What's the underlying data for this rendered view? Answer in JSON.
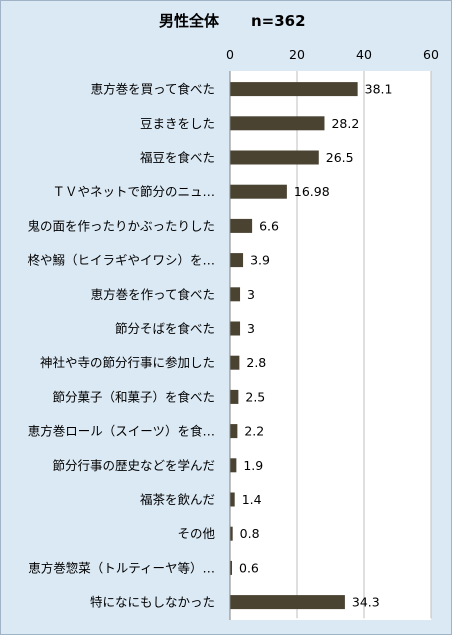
{
  "chart_data": {
    "type": "bar",
    "orientation": "horizontal",
    "title": "男性全体",
    "subtitle": "n=362",
    "xlim": [
      0,
      60
    ],
    "xticks": [
      0,
      20,
      40,
      60
    ],
    "grid": true,
    "legend": "none",
    "bar_color": "#4a4332",
    "categories": [
      "恵方巻を買って食べた",
      "豆まきをした",
      "福豆を食べた",
      "ＴＶやネットで節分のニュ…",
      "鬼の面を作ったりかぶったりした",
      "柊や鰯（ヒイラギやイワシ）を…",
      "恵方巻を作って食べた",
      "節分そばを食べた",
      "神社や寺の節分行事に参加した",
      "節分菓子（和菓子）を食べた",
      "恵方巻ロール（スイーツ）を食…",
      "節分行事の歴史などを学んだ",
      "福茶を飲んだ",
      "その他",
      "恵方巻惣菜（トルティーヤ等）…",
      "特になにもしなかった"
    ],
    "values": [
      38.1,
      28.2,
      26.5,
      16.98,
      6.6,
      3.9,
      3,
      3,
      2.8,
      2.5,
      2.2,
      1.9,
      1.4,
      0.8,
      0.6,
      34.3
    ],
    "value_labels": [
      "38.1",
      "28.2",
      "26.5",
      "16.98",
      "6.6",
      "3.9",
      "3",
      "3",
      "2.8",
      "2.5",
      "2.2",
      "1.9",
      "1.4",
      "0.8",
      "0.6",
      "34.3"
    ]
  }
}
